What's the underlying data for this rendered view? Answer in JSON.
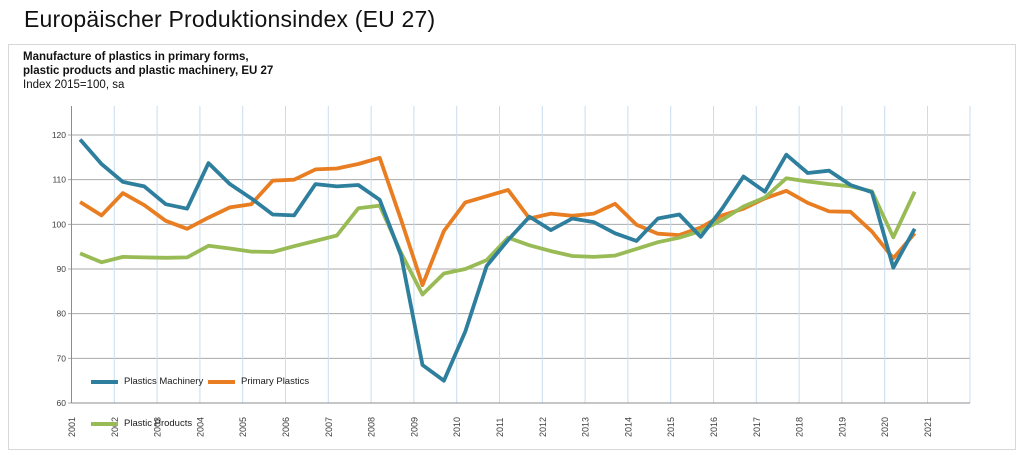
{
  "page": {
    "title": "Europäischer Produktionsindex (EU 27)"
  },
  "panel": {
    "subtitle_line1": "Manufacture of plastics in primary forms,",
    "subtitle_line2": "plastic products and plastic machinery, EU 27",
    "subtitle_line3": "Index 2015=100, sa"
  },
  "legend": {
    "items": [
      {
        "label": "Plastics Machinery",
        "color": "#2e7e9d"
      },
      {
        "label": "Primary Plastics",
        "color": "#e87d22"
      },
      {
        "label": "Plastic Products",
        "color": "#99bb55"
      }
    ]
  },
  "chart_data": {
    "type": "line",
    "title": "Europäischer Produktionsindex (EU 27)",
    "subtitle": "Manufacture of plastics in primary forms, plastic products and plastic machinery, EU 27 — Index 2015=100, sa",
    "x_start_year": 2001,
    "x_end_year": 2021,
    "points_per_year": 2,
    "x_point_offsets": [
      0.2,
      0.7
    ],
    "year_ticks": [
      2001,
      2002,
      2003,
      2004,
      2005,
      2006,
      2007,
      2008,
      2009,
      2010,
      2011,
      2012,
      2013,
      2014,
      2015,
      2016,
      2017,
      2018,
      2019,
      2020,
      2021
    ],
    "ylim": [
      60,
      120
    ],
    "yticks": [
      60,
      70,
      80,
      90,
      100,
      110,
      120
    ],
    "grid": {
      "h_color": "#a9a9a9",
      "v_color": "#c9ddf0",
      "axis_color": "#8c8c8c",
      "label_color": "#3d3d3d"
    },
    "legend_position": "inside-bottom-left",
    "series": [
      {
        "name": "Primary Plastics",
        "color": "#e87d22",
        "values": [
          105,
          102,
          107,
          104.3,
          100.8,
          99,
          101.5,
          103.8,
          104.5,
          109.8,
          110,
          112.3,
          112.5,
          113.5,
          114.9,
          101,
          86.4,
          98.5,
          104.9,
          106.3,
          107.7,
          101.3,
          102.4,
          101.9,
          102.4,
          104.6,
          99.9,
          97.9,
          97.6,
          99.3,
          102,
          103.5,
          105.8,
          107.5,
          104.8,
          102.9,
          102.8,
          98.4,
          92.4,
          98
        ]
      },
      {
        "name": "Plastic Products",
        "color": "#99bb55",
        "values": [
          93.5,
          91.5,
          92.7,
          92.6,
          92.5,
          92.6,
          95.2,
          94.6,
          93.9,
          93.8,
          95.1,
          96.3,
          97.5,
          103.6,
          104.2,
          93.6,
          84.3,
          89,
          90,
          92,
          97,
          95.3,
          94,
          92.9,
          92.7,
          93,
          94.5,
          96,
          97,
          98.5,
          101,
          104,
          106,
          110.3,
          109.6,
          109,
          108.5,
          107.4,
          97.1,
          107.3
        ]
      },
      {
        "name": "Plastics Machinery",
        "color": "#2e7e9d",
        "values": [
          119,
          113.5,
          109.5,
          108.5,
          104.5,
          103.5,
          113.7,
          109,
          105.8,
          102.2,
          102,
          109,
          108.5,
          108.8,
          105.5,
          93,
          68.5,
          65,
          76,
          90.7,
          96.5,
          101.7,
          98.7,
          101.3,
          100.5,
          98,
          96.3,
          101.3,
          102.2,
          97.2,
          103.5,
          110.7,
          107.3,
          115.6,
          111.5,
          112,
          108.8,
          107.2,
          90.3,
          99
        ]
      }
    ]
  }
}
